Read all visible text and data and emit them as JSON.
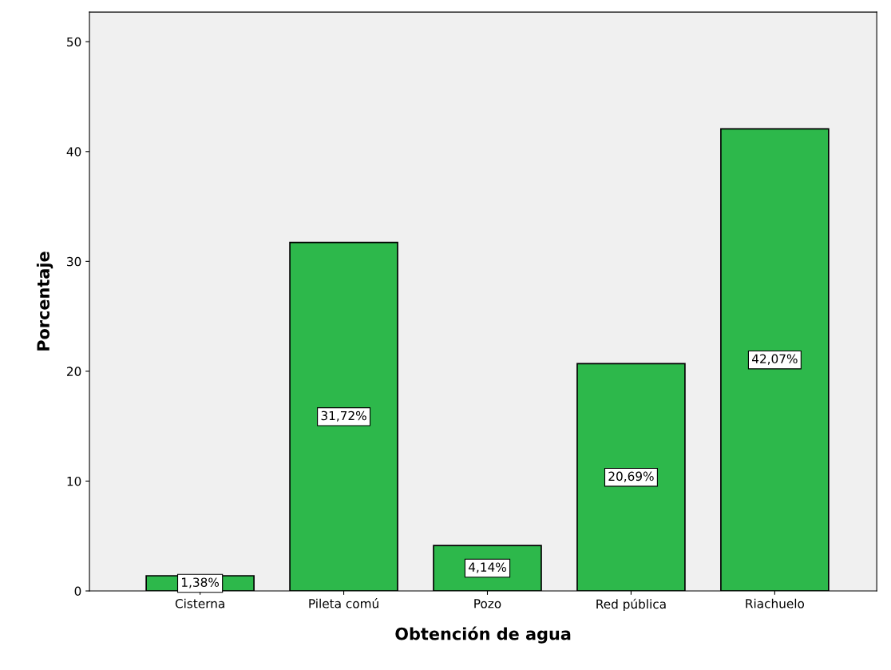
{
  "chart_data": {
    "type": "bar",
    "xlabel": "Obtención de agua",
    "ylabel": "Porcentaje",
    "categories": [
      "Cisterna",
      "Pileta comú",
      "Pozo",
      "Red pública",
      "Riachuelo"
    ],
    "values": [
      1.38,
      31.72,
      4.14,
      20.69,
      42.07
    ],
    "value_labels": [
      "1,38%",
      "31,72%",
      "4,14%",
      "20,69%",
      "42,07%"
    ],
    "color": "#2db84b",
    "ylim": [
      0,
      52.7
    ],
    "yticks": [
      0,
      10,
      20,
      30,
      40,
      50
    ],
    "grid": false,
    "legend": false
  }
}
